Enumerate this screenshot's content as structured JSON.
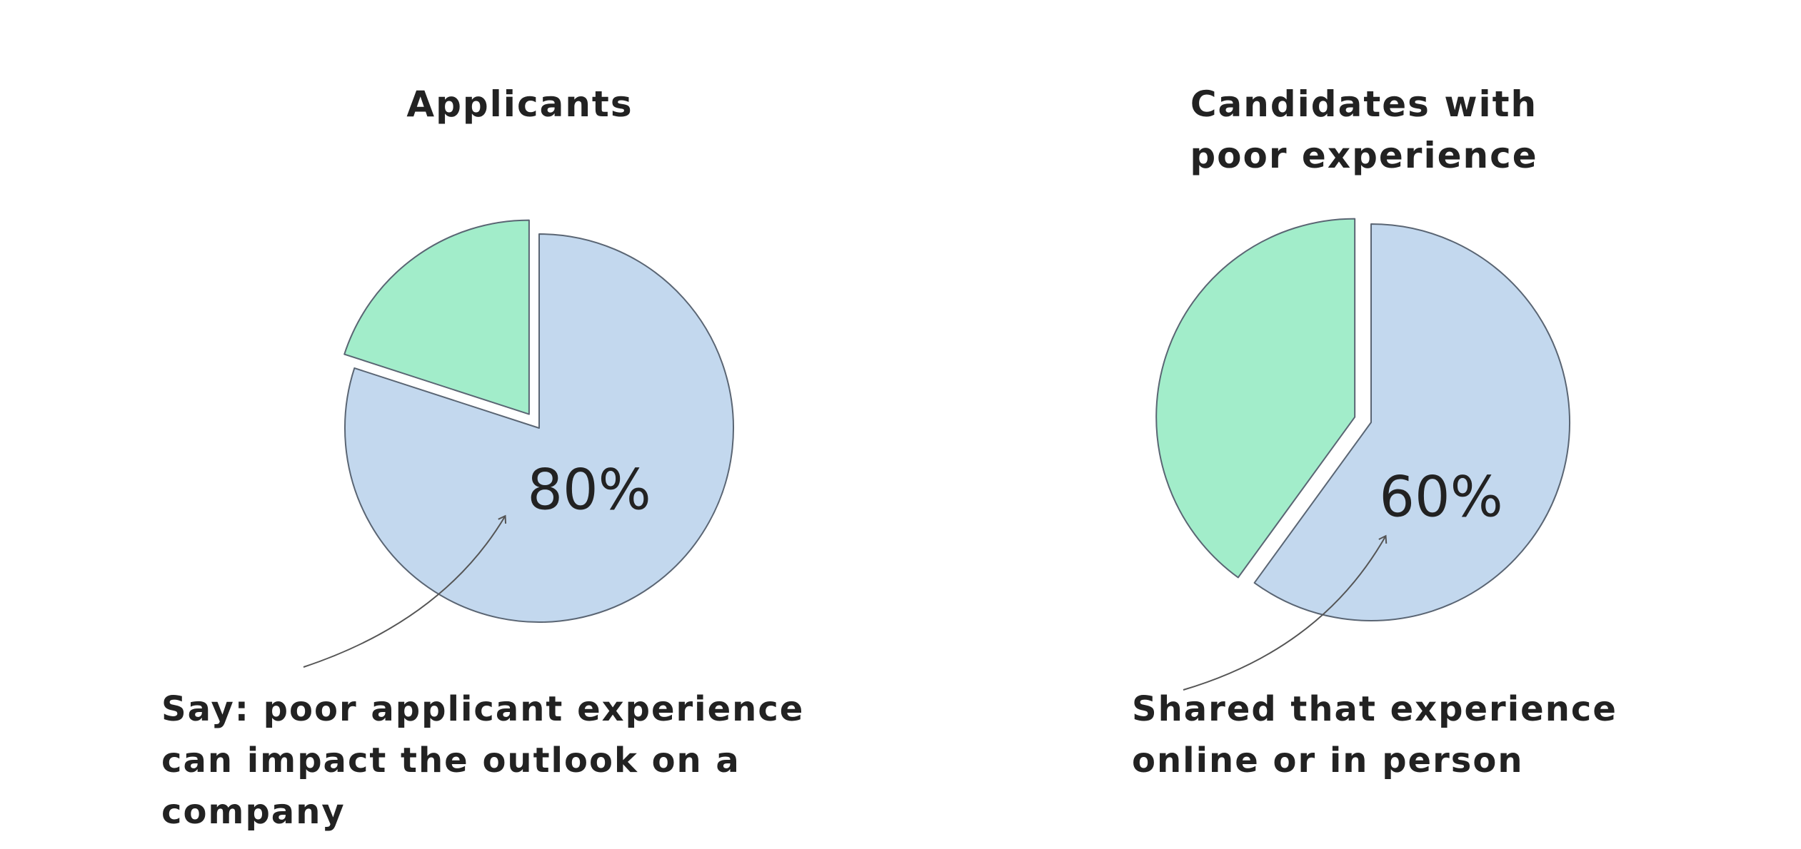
{
  "chart_data": [
    {
      "type": "pie",
      "title": "Applicants",
      "values": [
        80,
        20
      ],
      "value_labels": [
        "80%",
        null
      ],
      "colors": [
        "#c3d8ee",
        "#a2edca"
      ],
      "annotation": "Say: poor applicant experience can impact the outlook on a company"
    },
    {
      "type": "pie",
      "title": "Candidates with poor experience",
      "values": [
        60,
        40
      ],
      "value_labels": [
        "60%",
        null
      ],
      "colors": [
        "#c3d8ee",
        "#a2edca"
      ],
      "annotation": "Shared that experience online or in person"
    }
  ]
}
